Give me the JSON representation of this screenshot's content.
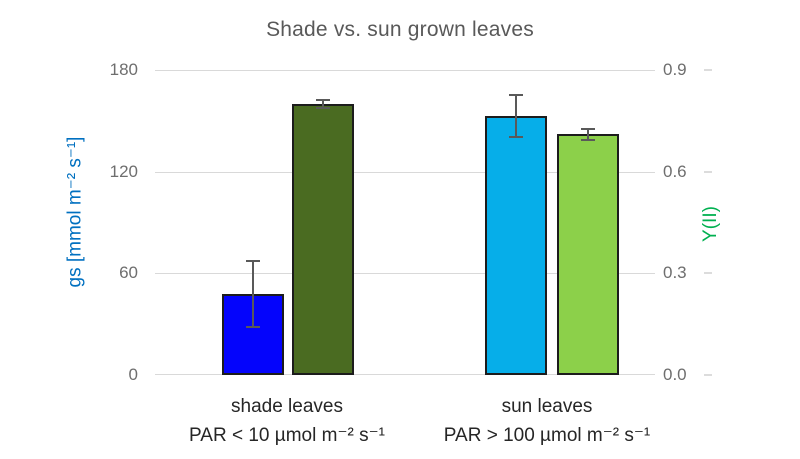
{
  "chart_data": {
    "type": "bar",
    "title": "Shade vs. sun grown leaves",
    "grid": true,
    "legend": "none",
    "left_axis": {
      "label": "gs [mmol m⁻² s⁻¹]",
      "ticks": [
        "180",
        "120",
        "60",
        "0"
      ],
      "min": 0,
      "max": 180,
      "color": "#0070C0"
    },
    "right_axis": {
      "label": "Y(II)",
      "ticks": [
        "0.9",
        "0.6",
        "0.3",
        "0.0"
      ],
      "min": 0,
      "max": 0.9,
      "color": "#00B050"
    },
    "groups": [
      {
        "label_line1": "shade leaves",
        "label_line2": "PAR < 10 µmol m⁻² s⁻¹",
        "bars": [
          {
            "name": "gs-shade",
            "axis": "left",
            "value": 48,
            "error": 20,
            "color": "#0404FC"
          },
          {
            "name": "yii-shade",
            "axis": "right",
            "value": 0.8,
            "error": 0.015,
            "color": "#4A6B21"
          }
        ]
      },
      {
        "label_line1": "sun leaves",
        "label_line2": "PAR > 100 µmol m⁻² s⁻¹",
        "bars": [
          {
            "name": "gs-sun",
            "axis": "left",
            "value": 153,
            "error": 13,
            "color": "#06AEE9"
          },
          {
            "name": "yii-sun",
            "axis": "right",
            "value": 0.71,
            "error": 0.02,
            "color": "#8CD04A"
          }
        ]
      }
    ],
    "colors": {
      "grid": "#D9D9D9",
      "tick_label": "#6E6E6E",
      "title": "#595959",
      "category_label": "#262626",
      "error_bar": "#595959",
      "bar_border": "#1C1C1C",
      "background": "#FFFFFF"
    }
  }
}
